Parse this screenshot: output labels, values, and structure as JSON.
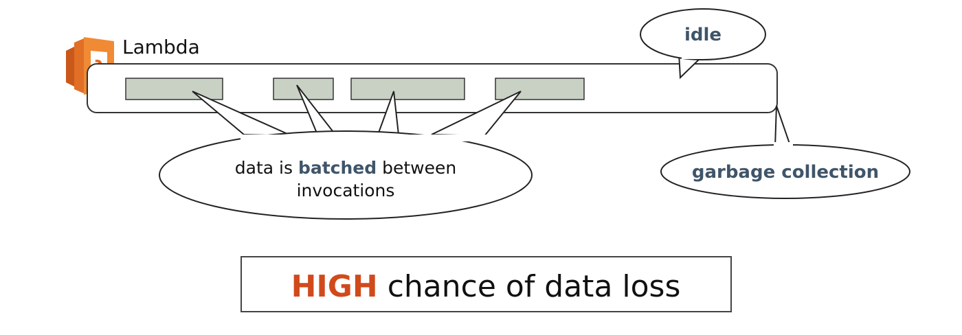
{
  "lambda": {
    "title": "Lambda",
    "icon": "aws-lambda-icon",
    "icon_colors": {
      "light": "#f08a35",
      "dark": "#c9581a",
      "mid": "#e26f26"
    },
    "batch_fill": "#c8d1c4",
    "batches_count_visible": 4
  },
  "callouts": {
    "idle": "idle",
    "garbage": "garbage collection",
    "batched_prefix": "data is ",
    "batched_emphasis": "batched",
    "batched_suffix": " between",
    "batched_line2": "invocations"
  },
  "footer": {
    "emphasis": "HIGH",
    "rest": " chance of data loss",
    "accent_color": "#d04a1c"
  },
  "colors": {
    "callout_text": "#3f5569"
  }
}
